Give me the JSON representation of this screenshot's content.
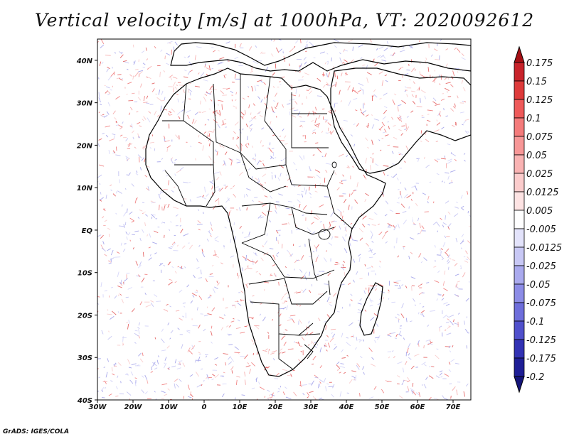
{
  "title": "Vertical velocity [m/s] at 1000hPa, VT: 2020092612",
  "credit": "GrADS: IGES/COLA",
  "map": {
    "lon_range": [
      -30,
      75
    ],
    "lat_range": [
      -40,
      45
    ],
    "x_ticks": [
      "30W",
      "20W",
      "10W",
      "0",
      "10E",
      "20E",
      "30E",
      "40E",
      "50E",
      "60E",
      "70E"
    ],
    "y_ticks": [
      "40N",
      "30N",
      "20N",
      "10N",
      "EQ",
      "10S",
      "20S",
      "30S",
      "40S"
    ],
    "land_color": "#ffffff",
    "ocean_color": "#ffffff",
    "border_color": "#000000"
  },
  "legend": {
    "labels": [
      "0.175",
      "0.15",
      "0.125",
      "0.1",
      "0.075",
      "0.05",
      "0.025",
      "0.0125",
      "0.005",
      "-0.005",
      "-0.0125",
      "-0.025",
      "-0.05",
      "-0.075",
      "-0.1",
      "-0.125",
      "-0.175",
      "-0.2"
    ],
    "colors": [
      "#a50f15",
      "#c8232b",
      "#de3b3b",
      "#ee5a5a",
      "#f47b7b",
      "#f79797",
      "#f9b3b3",
      "#fbcccc",
      "#fde3e3",
      "#ffffff",
      "#e3e3fb",
      "#c8c8f5",
      "#aaaaee",
      "#8c8ce6",
      "#6e6edb",
      "#5050cc",
      "#3232b4",
      "#1e1e96",
      "#14147a"
    ]
  }
}
